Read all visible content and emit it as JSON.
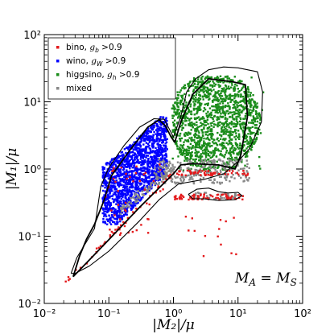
{
  "chart_data": {
    "type": "scatter",
    "title": "",
    "xlabel": "|M₂|/μ",
    "ylabel": "|M₁|/μ",
    "xscale": "log",
    "yscale": "log",
    "xlim": [
      0.01,
      100
    ],
    "ylim": [
      0.01,
      100
    ],
    "x_ticks": [
      {
        "value": 0.01,
        "label": "10⁻²"
      },
      {
        "value": 0.1,
        "label": "10⁻¹"
      },
      {
        "value": 1,
        "label": "10⁰"
      },
      {
        "value": 10,
        "label": "10¹"
      },
      {
        "value": 100,
        "label": "10²"
      }
    ],
    "y_ticks": [
      {
        "value": 0.01,
        "label": "10⁻²"
      },
      {
        "value": 0.1,
        "label": "10⁻¹"
      },
      {
        "value": 1,
        "label": "10⁰"
      },
      {
        "value": 10,
        "label": "10¹"
      },
      {
        "value": 100,
        "label": "10²"
      }
    ],
    "grid": false,
    "legend": {
      "placement": "top-left",
      "entries": [
        {
          "label": "bino, g_b > 0.9",
          "name": "bino",
          "cond": ">0.9",
          "sym": "g",
          "sub": "b",
          "color": "#e41a1c"
        },
        {
          "label": "wino, g_W > 0.9",
          "name": "wino",
          "cond": ">0.9",
          "sym": "g",
          "sub": "W",
          "color": "#0000ff"
        },
        {
          "label": "higgsino, g_h > 0.9",
          "name": "higgsino",
          "cond": ">0.9",
          "sym": "g",
          "sub": "h",
          "color": "#1a8c1a"
        },
        {
          "label": "mixed",
          "name": "mixed",
          "cond": "",
          "sym": "",
          "sub": "",
          "color": "#888888"
        }
      ]
    },
    "annotation": {
      "lhs": "M",
      "lhs_sub": "A",
      "eq": "=",
      "rhs": "M",
      "rhs_sub": "S",
      "placement": "bottom-right"
    },
    "series": [
      {
        "name": "bino",
        "color": "#e41a1c",
        "regions": [
          {
            "desc": "line",
            "from": [
              0.02,
              0.02
            ],
            "to": [
              0.9,
              0.8
            ],
            "n": 45,
            "spread": 0.06
          },
          {
            "desc": "band",
            "x": [
              1.0,
              15
            ],
            "y": [
              0.8,
              0.95
            ],
            "n": 60
          },
          {
            "desc": "band",
            "x": [
              1.0,
              12
            ],
            "y": [
              0.35,
              0.42
            ],
            "n": 70
          },
          {
            "desc": "cloud",
            "x": [
              0.08,
              0.7
            ],
            "y": [
              0.1,
              1.3
            ],
            "n": 45
          },
          {
            "desc": "cloud",
            "x": [
              1.2,
              10
            ],
            "y": [
              0.05,
              0.2
            ],
            "n": 14
          }
        ]
      },
      {
        "name": "wino",
        "color": "#0000ff",
        "regions": [
          {
            "desc": "cloud",
            "x": [
              0.08,
              0.8
            ],
            "y": [
              0.15,
              6
            ],
            "n": 1600,
            "lower_edge": "y>=x*1.1",
            "upper_edge": "y<=x*9+0.4"
          }
        ]
      },
      {
        "name": "higgsino",
        "color": "#1a8c1a",
        "regions": [
          {
            "desc": "cloud",
            "x": [
              0.95,
              25
            ],
            "y": [
              0.95,
              24
            ],
            "n": 1500
          }
        ]
      },
      {
        "name": "mixed",
        "color": "#888888",
        "regions": [
          {
            "desc": "band",
            "x": [
              0.5,
              15
            ],
            "y": [
              0.6,
              1.4
            ],
            "n": 260
          },
          {
            "desc": "line",
            "from": [
              0.15,
              0.25
            ],
            "to": [
              1.0,
              1.0
            ],
            "n": 90,
            "spread": 0.1
          },
          {
            "desc": "cloud",
            "x": [
              2,
              12
            ],
            "y": [
              0.35,
              0.45
            ],
            "n": 50
          }
        ]
      }
    ],
    "contours": [
      {
        "name": "inner-contour",
        "points": [
          [
            0.028,
            0.025
          ],
          [
            0.045,
            0.04
          ],
          [
            0.09,
            0.08
          ],
          [
            0.3,
            0.27
          ],
          [
            1.0,
            0.85
          ],
          [
            1.3,
            1.15
          ],
          [
            2.0,
            1.2
          ],
          [
            5.0,
            1.15
          ],
          [
            9.0,
            1.0
          ],
          [
            11,
            1.6
          ],
          [
            14,
            6.0
          ],
          [
            13,
            18
          ],
          [
            8,
            20
          ],
          [
            3.5,
            22
          ],
          [
            2.0,
            13
          ],
          [
            1.3,
            5
          ],
          [
            1.05,
            2.5
          ],
          [
            0.92,
            3.0
          ],
          [
            0.75,
            4.4
          ],
          [
            0.6,
            5.4
          ],
          [
            0.4,
            4.2
          ],
          [
            0.22,
            2.0
          ],
          [
            0.11,
            0.8
          ],
          [
            0.085,
            0.35
          ],
          [
            0.06,
            0.15
          ],
          [
            0.045,
            0.09
          ],
          [
            0.035,
            0.05
          ],
          [
            0.028,
            0.025
          ]
        ]
      },
      {
        "name": "outer-contour",
        "points": [
          [
            0.026,
            0.028
          ],
          [
            0.032,
            0.048
          ],
          [
            0.06,
            0.13
          ],
          [
            0.075,
            0.55
          ],
          [
            0.1,
            1.05
          ],
          [
            0.17,
            2.2
          ],
          [
            0.3,
            4.2
          ],
          [
            0.5,
            5.6
          ],
          [
            0.72,
            5.5
          ],
          [
            0.88,
            3.8
          ],
          [
            1.0,
            3.0
          ],
          [
            1.3,
            6
          ],
          [
            1.6,
            14
          ],
          [
            2.2,
            22
          ],
          [
            3.5,
            30
          ],
          [
            6,
            33
          ],
          [
            10,
            32
          ],
          [
            20,
            28
          ],
          [
            24,
            14
          ],
          [
            23,
            5
          ],
          [
            15,
            2
          ],
          [
            10,
            1.3
          ],
          [
            6,
            0.85
          ],
          [
            3,
            0.7
          ],
          [
            1.2,
            0.6
          ],
          [
            0.6,
            0.35
          ],
          [
            0.3,
            0.17
          ],
          [
            0.1,
            0.06
          ],
          [
            0.05,
            0.036
          ],
          [
            0.03,
            0.028
          ],
          [
            0.026,
            0.028
          ]
        ]
      },
      {
        "name": "island-contour",
        "points": [
          [
            1.7,
            0.42
          ],
          [
            2.3,
            0.5
          ],
          [
            3.5,
            0.52
          ],
          [
            5,
            0.46
          ],
          [
            7,
            0.44
          ],
          [
            10,
            0.45
          ],
          [
            11.5,
            0.4
          ],
          [
            9,
            0.35
          ],
          [
            5,
            0.34
          ],
          [
            3,
            0.36
          ],
          [
            2,
            0.36
          ],
          [
            1.7,
            0.42
          ]
        ]
      }
    ]
  }
}
